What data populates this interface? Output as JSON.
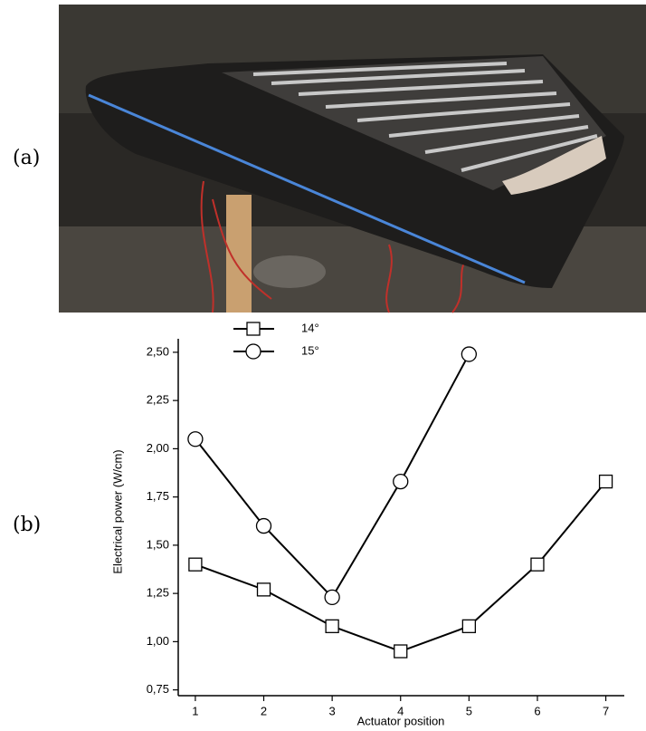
{
  "figure": {
    "panel_labels": [
      "(a)",
      "(b)"
    ]
  },
  "chart_data": {
    "type": "line",
    "x_label": "Actuator position",
    "y_label": "Electrical power (W/cm)",
    "x": [
      1,
      2,
      3,
      4,
      5,
      6,
      7
    ],
    "series": [
      {
        "name": "14°",
        "color": "#000000",
        "marker": "square",
        "values": [
          1.4,
          1.27,
          1.08,
          0.95,
          1.08,
          1.4,
          1.83
        ]
      },
      {
        "name": "15°",
        "color": "#000000",
        "marker": "circle",
        "values": [
          2.05,
          1.6,
          1.23,
          1.83,
          2.49,
          null,
          null
        ]
      }
    ],
    "xlim": [
      0.75,
      7.27
    ],
    "xticks": [
      1,
      2,
      3,
      4,
      5,
      6,
      7
    ],
    "ylim": [
      0.72,
      2.57
    ],
    "yticks": [
      {
        "value": 0.75,
        "label": "0,75"
      },
      {
        "value": 1.0,
        "label": "1,00"
      },
      {
        "value": 1.25,
        "label": "1,25"
      },
      {
        "value": 1.5,
        "label": "1,50"
      },
      {
        "value": 1.75,
        "label": "1,75"
      },
      {
        "value": 2.0,
        "label": "2,00"
      },
      {
        "value": 2.25,
        "label": "2,25"
      },
      {
        "value": 2.5,
        "label": "2,50"
      }
    ],
    "grid": false,
    "legend": "top-left"
  }
}
